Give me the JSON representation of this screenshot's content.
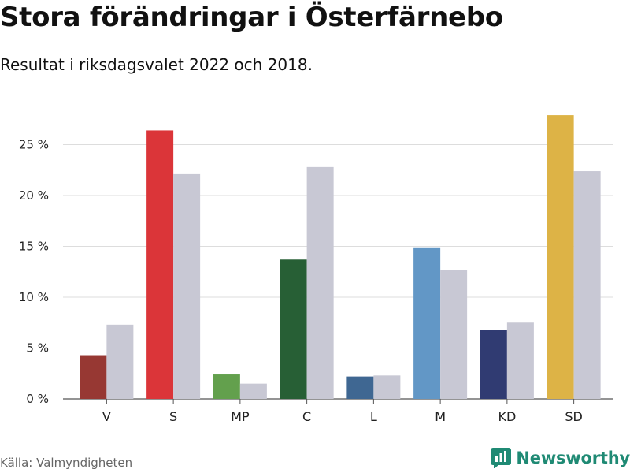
{
  "header": {
    "title": "Stora förändringar i Österfärnebo",
    "subtitle": "Resultat i riksdagsvalet 2022 och 2018."
  },
  "footer": {
    "source": "Källa: Valmyndigheten",
    "brand": "Newsworthy",
    "brand_icon": "bar-chart-icon",
    "brand_color": "#1f8a74"
  },
  "chart_data": {
    "type": "bar",
    "title": "Stora förändringar i Österfärnebo",
    "subtitle": "Resultat i riksdagsvalet 2022 och 2018.",
    "xlabel": "",
    "ylabel": "",
    "ylim": [
      0,
      28
    ],
    "yticks": [
      0,
      5,
      10,
      15,
      20,
      25
    ],
    "ytick_labels": [
      "0 %",
      "5 %",
      "10 %",
      "15 %",
      "20 %",
      "25 %"
    ],
    "grid": true,
    "categories": [
      "V",
      "S",
      "MP",
      "C",
      "L",
      "M",
      "KD",
      "SD"
    ],
    "series": [
      {
        "name": "2022",
        "values": [
          4.3,
          26.4,
          2.4,
          13.7,
          2.2,
          14.9,
          6.8,
          27.9
        ],
        "colors": [
          "#973833",
          "#db3539",
          "#63a04d",
          "#275f35",
          "#3f6792",
          "#6297c6",
          "#303b72",
          "#ddb346"
        ]
      },
      {
        "name": "2018",
        "values": [
          7.3,
          22.1,
          1.5,
          22.8,
          2.3,
          12.7,
          7.5,
          22.4
        ],
        "color": "#c8c8d4"
      }
    ]
  }
}
